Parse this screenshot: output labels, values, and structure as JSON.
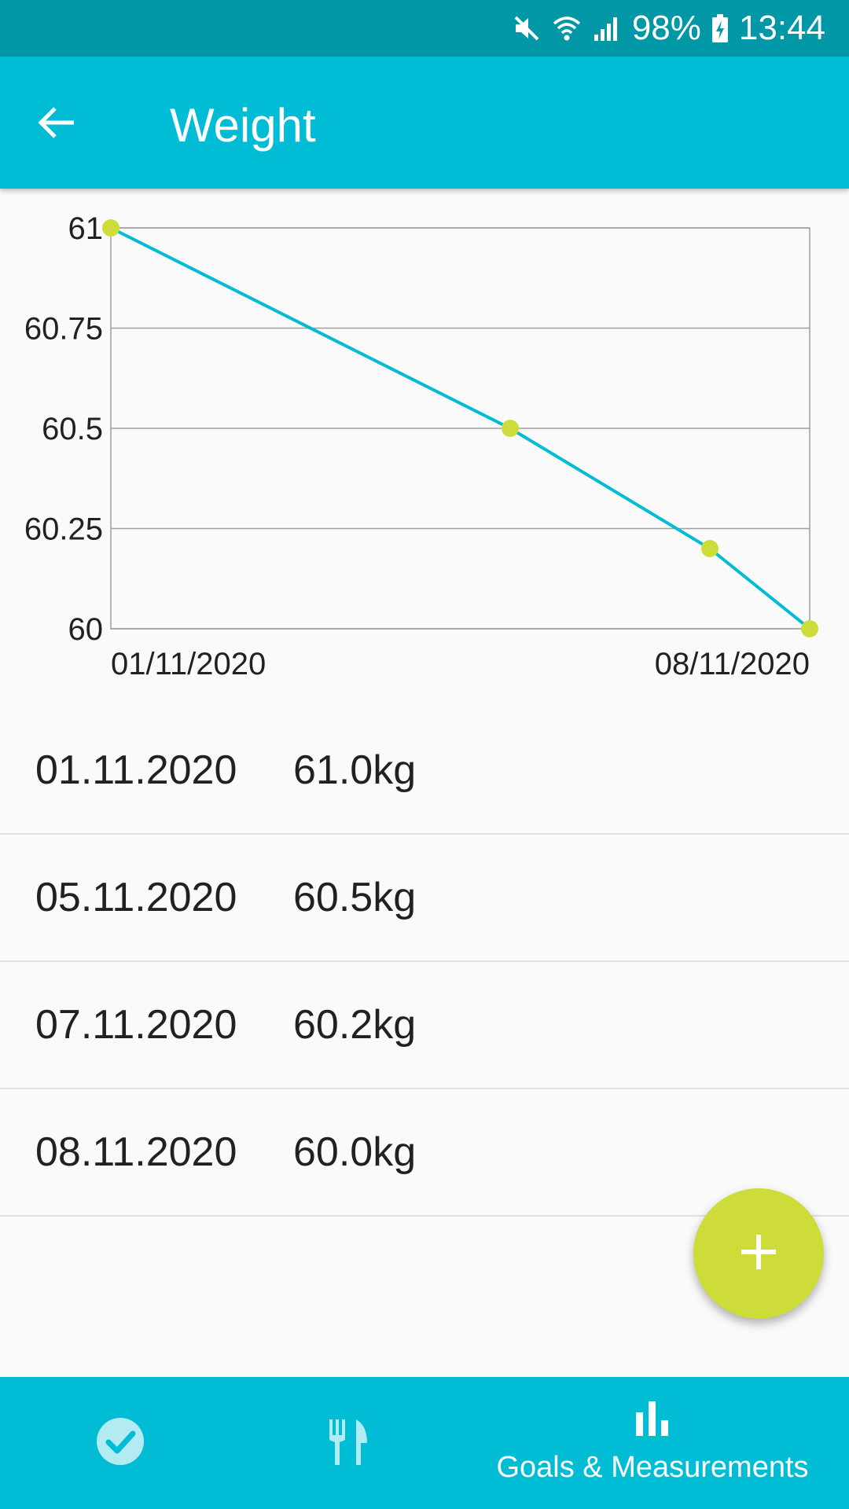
{
  "status_bar": {
    "battery": "98%",
    "time": "13:44",
    "icons": [
      "mute-icon",
      "wifi-icon",
      "signal-icon",
      "battery-charging-icon"
    ]
  },
  "app_bar": {
    "title": "Weight",
    "back_icon": "arrow-back-icon"
  },
  "chart_data": {
    "type": "line",
    "x": [
      "01/11/2020",
      "05/11/2020",
      "07/11/2020",
      "08/11/2020"
    ],
    "x_numeric_day": [
      1,
      5,
      7,
      8
    ],
    "y": [
      61.0,
      60.5,
      60.2,
      60.0
    ],
    "ylim": [
      60,
      61
    ],
    "yticks": [
      "61",
      "60.75",
      "60.5",
      "60.25",
      "60"
    ],
    "ytick_values": [
      61,
      60.75,
      60.5,
      60.25,
      60
    ],
    "xtick_labels": [
      "01/11/2020",
      "08/11/2020"
    ],
    "grid": true,
    "line_color": "#00bcd4",
    "point_color": "#cddc39"
  },
  "entries": [
    {
      "date": "01.11.2020",
      "value": "61.0kg"
    },
    {
      "date": "05.11.2020",
      "value": "60.5kg"
    },
    {
      "date": "07.11.2020",
      "value": "60.2kg"
    },
    {
      "date": "08.11.2020",
      "value": "60.0kg"
    }
  ],
  "fab": {
    "icon": "plus-icon",
    "color": "#cddc39"
  },
  "bottom_nav": {
    "items": [
      {
        "icon": "check-circle-icon",
        "label": ""
      },
      {
        "icon": "restaurant-icon",
        "label": ""
      },
      {
        "icon": "bar-chart-icon",
        "label": "Goals & Measurements"
      }
    ]
  },
  "colors": {
    "primary": "#00bcd4",
    "primary_dark": "#0097a7",
    "accent": "#cddc39"
  }
}
